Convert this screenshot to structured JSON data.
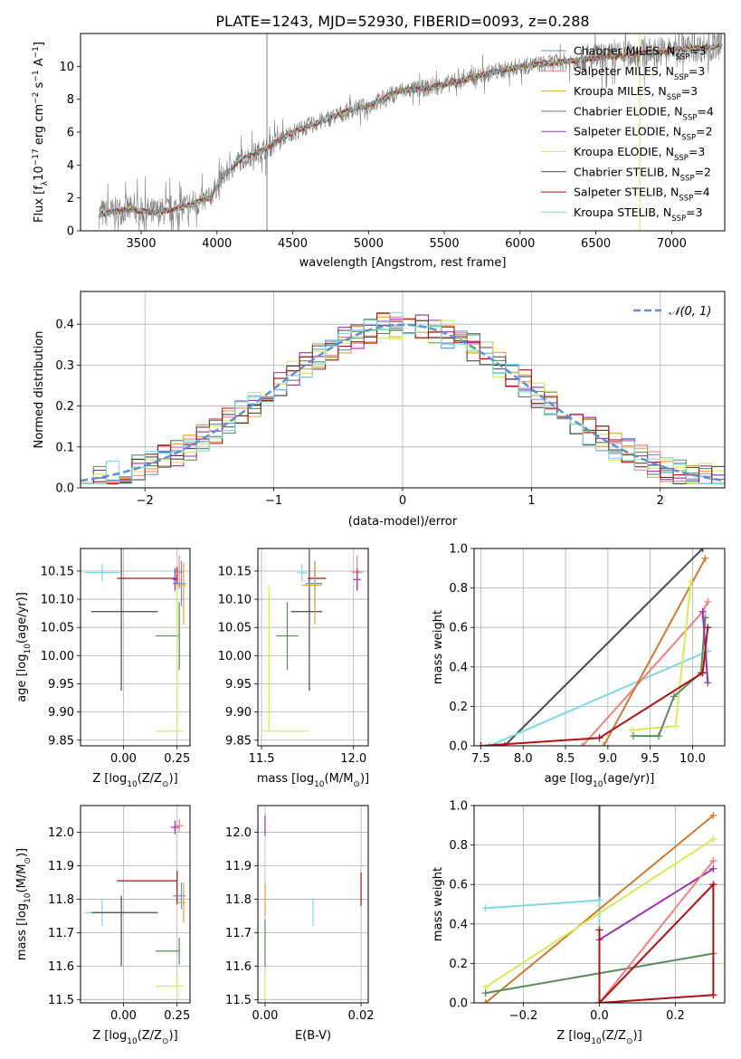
{
  "figure_title": "PLATE=1243, MJD=52930, FIBERID=0093, z=0.288",
  "colors": {
    "chabrier_miles": "#6a8fcd",
    "salpeter_miles": "#f08080",
    "kroupa_miles": "#e9a23b",
    "chabrier_elodie": "#5b8a5b",
    "salpeter_elodie": "#9b30b0",
    "kroupa_elodie": "#d4ec5a",
    "chabrier_stelib": "#4a4a4a",
    "salpeter_stelib": "#b01010",
    "kroupa_stelib": "#7fd9e0",
    "normal": "#5b8fd6",
    "spectrum": "#808080",
    "cyan_fit": "#80d8dc",
    "orange_fit": "#d07a30",
    "pink_fit": "#e07fb0",
    "yellow_fit": "#d4ec5a",
    "green_fit": "#5b8a5b",
    "dark_fit": "#4a4a4a",
    "red_fit": "#b01010",
    "purple_fit": "#9b30b0"
  },
  "chart_data": [
    {
      "id": "spectrum",
      "type": "line",
      "xlabel": "wavelength [Angstrom, rest frame]",
      "ylabel": "Flux [f",
      "ylabel_sub": "λ",
      "ylabel_mid": "10",
      "ylabel_sup1": "−17",
      "ylabel_tail": " erg cm",
      "ylabel_sup2": "−2",
      "ylabel_tail2": " s",
      "ylabel_sup3": "−1",
      "ylabel_tail3": " A",
      "ylabel_sup4": "−1",
      "ylabel_end": "]",
      "xlim": [
        3100,
        7350
      ],
      "ylim": [
        0,
        12
      ],
      "xticks": [
        "3500",
        "4000",
        "4500",
        "5000",
        "5500",
        "6000",
        "6500",
        "7000"
      ],
      "yticks": [
        "0",
        "2",
        "4",
        "6",
        "8",
        "10"
      ],
      "continuum_x": [
        3220,
        3400,
        3600,
        3800,
        3950,
        4050,
        4150,
        4300,
        4500,
        4700,
        4900,
        5000,
        5200,
        5400,
        5600,
        5800,
        6000,
        6200,
        6400,
        6600,
        6800,
        7000,
        7150,
        7300
      ],
      "continuum_y": [
        1.0,
        1.3,
        1.1,
        1.5,
        2.0,
        3.4,
        4.3,
        4.9,
        6.0,
        6.7,
        7.4,
        7.6,
        8.5,
        8.7,
        9.1,
        9.6,
        10.0,
        10.2,
        10.4,
        10.6,
        10.8,
        11.0,
        11.1,
        11.2
      ],
      "legend": [
        {
          "label": "Chabrier MILES, N",
          "sub": "SSP",
          "end": "=3",
          "color_key": "chabrier_miles"
        },
        {
          "label": "Salpeter MILES, N",
          "sub": "SSP",
          "end": "=3",
          "color_key": "salpeter_miles"
        },
        {
          "label": "Kroupa MILES, N",
          "sub": "SSP",
          "end": "=3",
          "color_key": "kroupa_miles"
        },
        {
          "label": "Chabrier ELODIE, N",
          "sub": "SSP",
          "end": "=4",
          "color_key": "chabrier_elodie"
        },
        {
          "label": "Salpeter ELODIE, N",
          "sub": "SSP",
          "end": "=2",
          "color_key": "salpeter_elodie"
        },
        {
          "label": "Kroupa ELODIE, N",
          "sub": "SSP",
          "end": "=3",
          "color_key": "kroupa_elodie"
        },
        {
          "label": "Chabrier STELIB, N",
          "sub": "SSP",
          "end": "=2",
          "color_key": "chabrier_stelib"
        },
        {
          "label": "Salpeter STELIB, N",
          "sub": "SSP",
          "end": "=4",
          "color_key": "salpeter_stelib"
        },
        {
          "label": "Kroupa STELIB, N",
          "sub": "SSP",
          "end": "=3",
          "color_key": "kroupa_stelib"
        }
      ]
    },
    {
      "id": "residuals",
      "type": "histogram",
      "xlabel": "(data-model)/error",
      "ylabel": "Normed distribution",
      "xlim": [
        -2.5,
        2.5
      ],
      "ylim": [
        0,
        0.48
      ],
      "xticks": [
        -2,
        -1,
        0,
        1,
        2
      ],
      "xtick_labels": [
        "−2",
        "−1",
        "0",
        "1",
        "2"
      ],
      "yticks": [
        0.0,
        0.1,
        0.2,
        0.3,
        0.4
      ],
      "ytick_labels": [
        "0.0",
        "0.1",
        "0.2",
        "0.3",
        "0.4"
      ],
      "bin_width": 0.1,
      "legend": "𝒩(0, 1)"
    },
    {
      "id": "age_vs_Z",
      "type": "errorbar",
      "xlabel": "Z [log",
      "xlabel_sub": "10",
      "xlabel_tail": "(Z/Z",
      "xlabel_sub2": "⊙",
      "xlabel_end": ")]",
      "ylabel": "age  [log",
      "ylabel_sub": "10",
      "ylabel_tail": "(age/yr)]",
      "xlim": [
        -0.2,
        0.31
      ],
      "ylim": [
        9.84,
        10.19
      ],
      "xticks": [
        0.0,
        0.25
      ],
      "xtick_labels": [
        "0.00",
        "0.25"
      ],
      "yticks": [
        9.85,
        9.9,
        9.95,
        10.0,
        10.05,
        10.1,
        10.15
      ],
      "ytick_labels": [
        "9.85",
        "9.90",
        "9.95",
        "10.00",
        "10.05",
        "10.10",
        "10.15"
      ],
      "points": [
        {
          "x": -0.1,
          "y": 10.147,
          "xerr": [
            0.08,
            0.08
          ],
          "yerr": [
            0.015,
            0.015
          ],
          "color_key": "kroupa_stelib"
        },
        {
          "x": -0.01,
          "y": 10.078,
          "xerr": [
            0.14,
            0.17
          ],
          "yerr": [
            0.14,
            0.14
          ],
          "color_key": "chabrier_stelib"
        },
        {
          "x": 0.25,
          "y": 10.137,
          "xerr": [
            0.28,
            0.0
          ],
          "yerr": [
            0.02,
            0.02
          ],
          "color_key": "salpeter_stelib"
        },
        {
          "x": 0.26,
          "y": 10.148,
          "xerr": [
            0.02,
            0.02
          ],
          "yerr": [
            0.03,
            0.03
          ],
          "color_key": "salpeter_miles"
        },
        {
          "x": 0.27,
          "y": 10.128,
          "xerr": [
            0.04,
            0.02
          ],
          "yerr": [
            0.04,
            0.04
          ],
          "color_key": "chabrier_miles"
        },
        {
          "x": 0.28,
          "y": 10.125,
          "xerr": [
            0.03,
            0.01
          ],
          "yerr": [
            0.07,
            0.04
          ],
          "color_key": "kroupa_miles"
        },
        {
          "x": 0.24,
          "y": 10.135,
          "xerr": [
            0.01,
            0.01
          ],
          "yerr": [
            0.02,
            0.02
          ],
          "color_key": "salpeter_elodie"
        },
        {
          "x": 0.26,
          "y": 10.035,
          "xerr": [
            0.11,
            0.0
          ],
          "yerr": [
            0.06,
            0.06
          ],
          "color_key": "chabrier_elodie"
        },
        {
          "x": 0.25,
          "y": 9.866,
          "xerr": [
            0.1,
            0.03
          ],
          "yerr": [
            0.0,
            0.26
          ],
          "color_key": "kroupa_elodie"
        }
      ]
    },
    {
      "id": "age_vs_mass",
      "type": "errorbar",
      "xlabel": "mass [log",
      "xlabel_sub": "10",
      "xlabel_tail": "(M/M",
      "xlabel_sub2": "⊙",
      "xlabel_end": ")]",
      "xlim": [
        11.48,
        12.08
      ],
      "ylim": [
        9.84,
        10.19
      ],
      "xticks": [
        11.5,
        12.0
      ],
      "xtick_labels": [
        "11.5",
        "12.0"
      ],
      "yticks": [
        9.85,
        9.9,
        9.95,
        10.0,
        10.05,
        10.1,
        10.15
      ],
      "ytick_labels": [
        "9.85",
        "9.90",
        "9.95",
        "10.00",
        "10.05",
        "10.10",
        "10.15"
      ],
      "points": [
        {
          "x": 11.72,
          "y": 10.147,
          "xerr": [
            0.03,
            0.03
          ],
          "yerr": [
            0.015,
            0.015
          ],
          "color_key": "kroupa_stelib"
        },
        {
          "x": 11.76,
          "y": 10.078,
          "xerr": [
            0.1,
            0.07
          ],
          "yerr": [
            0.14,
            0.14
          ],
          "color_key": "chabrier_stelib"
        },
        {
          "x": 11.79,
          "y": 10.137,
          "xerr": [
            0.04,
            0.06
          ],
          "yerr": [
            0.02,
            0.02
          ],
          "color_key": "salpeter_stelib"
        },
        {
          "x": 12.02,
          "y": 10.148,
          "xerr": [
            0.03,
            0.03
          ],
          "yerr": [
            0.03,
            0.03
          ],
          "color_key": "salpeter_miles"
        },
        {
          "x": 11.79,
          "y": 10.128,
          "xerr": [
            0.05,
            0.04
          ],
          "yerr": [
            0.04,
            0.04
          ],
          "color_key": "chabrier_miles"
        },
        {
          "x": 11.79,
          "y": 10.125,
          "xerr": [
            0.07,
            0.04
          ],
          "yerr": [
            0.07,
            0.04
          ],
          "color_key": "kroupa_miles"
        },
        {
          "x": 12.02,
          "y": 10.135,
          "xerr": [
            0.02,
            0.02
          ],
          "yerr": [
            0.02,
            0.02
          ],
          "color_key": "salpeter_elodie"
        },
        {
          "x": 11.64,
          "y": 10.035,
          "xerr": [
            0.06,
            0.06
          ],
          "yerr": [
            0.06,
            0.06
          ],
          "color_key": "chabrier_elodie"
        },
        {
          "x": 11.54,
          "y": 9.866,
          "xerr": [
            0.04,
            0.22
          ],
          "yerr": [
            0.0,
            0.26
          ],
          "color_key": "kroupa_elodie"
        }
      ]
    },
    {
      "id": "weight_vs_age",
      "type": "line",
      "xlabel": "age  [log",
      "xlabel_sub": "10",
      "xlabel_tail": "(age/yr)]",
      "ylabel": "mass weight",
      "xlim": [
        7.42,
        10.38
      ],
      "ylim": [
        0,
        1
      ],
      "xticks": [
        7.5,
        8.0,
        8.5,
        9.0,
        9.5,
        10.0
      ],
      "xtick_labels": [
        "7.5",
        "8.0",
        "8.5",
        "9.0",
        "9.5",
        "10.0"
      ],
      "yticks": [
        0,
        0.2,
        0.4,
        0.6,
        0.8,
        1.0
      ],
      "ytick_labels": [
        "0.0",
        "0.2",
        "0.4",
        "0.6",
        "0.8",
        "1.0"
      ],
      "series": [
        {
          "color_key": "chabrier_stelib",
          "x": [
            7.78,
            10.12
          ],
          "y": [
            0.0,
            1.0
          ]
        },
        {
          "color_key": "kroupa_stelib",
          "x": [
            7.6,
            10.18
          ],
          "y": [
            0.0,
            0.48
          ]
        },
        {
          "color_key": "salpeter_miles",
          "x": [
            8.7,
            10.12,
            10.18
          ],
          "y": [
            0.0,
            0.68,
            0.73
          ]
        },
        {
          "color_key": "orange_fit",
          "x": [
            8.95,
            10.15
          ],
          "y": [
            0.0,
            0.95
          ]
        },
        {
          "color_key": "kroupa_elodie",
          "x": [
            9.28,
            9.8,
            9.98
          ],
          "y": [
            0.08,
            0.1,
            0.83
          ]
        },
        {
          "color_key": "chabrier_elodie",
          "x": [
            9.3,
            9.6,
            9.78,
            10.1,
            10.15
          ],
          "y": [
            0.05,
            0.05,
            0.25,
            0.37,
            0.65
          ]
        },
        {
          "color_key": "salpeter_elodie",
          "x": [
            10.12,
            10.18
          ],
          "y": [
            0.68,
            0.32
          ]
        },
        {
          "color_key": "salpeter_stelib",
          "x": [
            7.5,
            8.9,
            10.12,
            10.18
          ],
          "y": [
            0.0,
            0.04,
            0.37,
            0.6
          ]
        }
      ]
    },
    {
      "id": "mass_vs_Z",
      "type": "errorbar",
      "xlabel": "Z [log",
      "xlabel_sub": "10",
      "xlabel_tail": "(Z/Z",
      "xlabel_sub2": "⊙",
      "xlabel_end": ")]",
      "ylabel": "mass [log",
      "ylabel_sub": "10",
      "ylabel_tail": "(M/M",
      "ylabel_sub2": "⊙",
      "ylabel_end": ")]",
      "xlim": [
        -0.2,
        0.31
      ],
      "ylim": [
        11.49,
        12.08
      ],
      "xticks": [
        0.0,
        0.25
      ],
      "xtick_labels": [
        "0.00",
        "0.25"
      ],
      "yticks": [
        11.5,
        11.6,
        11.7,
        11.8,
        11.9,
        12.0
      ],
      "ytick_labels": [
        "11.5",
        "11.6",
        "11.7",
        "11.8",
        "11.9",
        "12.0"
      ],
      "points": [
        {
          "x": -0.1,
          "y": 11.76,
          "xerr": [
            0.08,
            0.08
          ],
          "yerr": [
            0.04,
            0.04
          ],
          "color_key": "kroupa_stelib"
        },
        {
          "x": -0.01,
          "y": 11.76,
          "xerr": [
            0.14,
            0.17
          ],
          "yerr": [
            0.16,
            0.05
          ],
          "color_key": "chabrier_stelib"
        },
        {
          "x": 0.25,
          "y": 11.855,
          "xerr": [
            0.28,
            0.0
          ],
          "yerr": [
            0.07,
            0.03
          ],
          "color_key": "salpeter_stelib"
        },
        {
          "x": 0.26,
          "y": 12.02,
          "xerr": [
            0.02,
            0.02
          ],
          "yerr": [
            0.02,
            0.02
          ],
          "color_key": "salpeter_miles"
        },
        {
          "x": 0.27,
          "y": 11.81,
          "xerr": [
            0.04,
            0.02
          ],
          "yerr": [
            0.04,
            0.04
          ],
          "color_key": "chabrier_miles"
        },
        {
          "x": 0.28,
          "y": 11.79,
          "xerr": [
            0.03,
            0.01
          ],
          "yerr": [
            0.06,
            0.06
          ],
          "color_key": "kroupa_miles"
        },
        {
          "x": 0.24,
          "y": 12.015,
          "xerr": [
            0.02,
            0.02
          ],
          "yerr": [
            0.02,
            0.02
          ],
          "color_key": "salpeter_elodie"
        },
        {
          "x": 0.26,
          "y": 11.645,
          "xerr": [
            0.11,
            0.0
          ],
          "yerr": [
            0.04,
            0.04
          ],
          "color_key": "chabrier_elodie"
        },
        {
          "x": 0.25,
          "y": 11.54,
          "xerr": [
            0.1,
            0.03
          ],
          "yerr": [
            0.04,
            0.04
          ],
          "color_key": "kroupa_elodie"
        }
      ]
    },
    {
      "id": "mass_vs_ebv",
      "type": "errorbar",
      "xlabel": "E(B-V)",
      "xlim": [
        -0.0015,
        0.0215
      ],
      "ylim": [
        11.49,
        12.08
      ],
      "xticks": [
        0.0,
        0.02
      ],
      "xtick_labels": [
        "0.00",
        "0.02"
      ],
      "yticks": [
        11.5,
        11.6,
        11.7,
        11.8,
        11.9,
        12.0
      ],
      "ytick_labels": [
        "11.5",
        "11.6",
        "11.7",
        "11.8",
        "11.9",
        "12.0"
      ],
      "points": [
        {
          "x": 0.01,
          "y": 11.76,
          "xerr": [
            0,
            0
          ],
          "yerr": [
            0.04,
            0.04
          ],
          "color_key": "kroupa_stelib"
        },
        {
          "x": 0.02,
          "y": 11.82,
          "xerr": [
            0,
            0
          ],
          "yerr": [
            0.04,
            0.06
          ],
          "color_key": "salpeter_stelib"
        },
        {
          "x": 0.0,
          "y": 12.02,
          "xerr": [
            0,
            0
          ],
          "yerr": [
            0.03,
            0.03
          ],
          "color_key": "salpeter_elodie"
        },
        {
          "x": 0.0,
          "y": 11.8,
          "xerr": [
            0,
            0
          ],
          "yerr": [
            0.05,
            0.05
          ],
          "color_key": "kroupa_miles"
        },
        {
          "x": 0.0,
          "y": 11.64,
          "xerr": [
            0,
            0
          ],
          "yerr": [
            0.04,
            0.1
          ],
          "color_key": "chabrier_elodie"
        },
        {
          "x": 0.0,
          "y": 11.54,
          "xerr": [
            0,
            0
          ],
          "yerr": [
            0.04,
            0.04
          ],
          "color_key": "kroupa_elodie"
        }
      ]
    },
    {
      "id": "weight_vs_Z",
      "type": "line",
      "xlabel": "Z [log",
      "xlabel_sub": "10",
      "xlabel_tail": "(Z/Z",
      "xlabel_sub2": "⊙",
      "xlabel_end": ")]",
      "ylabel": "mass weight",
      "xlim": [
        -0.33,
        0.33
      ],
      "ylim": [
        0,
        1
      ],
      "xticks": [
        -0.2,
        0.0,
        0.2
      ],
      "xtick_labels": [
        "−0.2",
        "0.0",
        "0.2"
      ],
      "yticks": [
        0,
        0.2,
        0.4,
        0.6,
        0.8,
        1.0
      ],
      "ytick_labels": [
        "0.0",
        "0.2",
        "0.4",
        "0.6",
        "0.8",
        "1.0"
      ],
      "series": [
        {
          "color_key": "chabrier_stelib",
          "x": [
            0.0,
            0.0
          ],
          "y": [
            0.0,
            1.0
          ]
        },
        {
          "color_key": "kroupa_stelib",
          "x": [
            -0.3,
            0.0,
            0.0
          ],
          "y": [
            0.48,
            0.52,
            0.0
          ]
        },
        {
          "color_key": "orange_fit",
          "x": [
            -0.3,
            0.3
          ],
          "y": [
            0.0,
            0.95
          ]
        },
        {
          "color_key": "kroupa_elodie",
          "x": [
            -0.3,
            0.3
          ],
          "y": [
            0.08,
            0.83
          ]
        },
        {
          "color_key": "chabrier_elodie",
          "x": [
            -0.3,
            0.3
          ],
          "y": [
            0.05,
            0.25
          ]
        },
        {
          "color_key": "salpeter_elodie",
          "x": [
            0.0,
            0.3
          ],
          "y": [
            0.32,
            0.68
          ]
        },
        {
          "color_key": "salpeter_miles",
          "x": [
            0.0,
            0.3
          ],
          "y": [
            0.0,
            0.72
          ]
        },
        {
          "color_key": "salpeter_stelib",
          "x": [
            0.0,
            0.0,
            0.3,
            0.3,
            0.0
          ],
          "y": [
            0.37,
            0.0,
            0.04,
            0.6,
            0.0
          ]
        }
      ]
    }
  ]
}
